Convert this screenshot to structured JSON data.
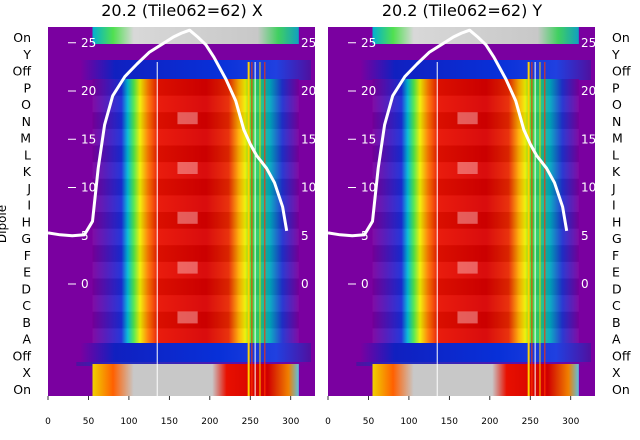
{
  "chart_data": [
    {
      "type": "heatmap",
      "title": "20.2 (Tile062=62) X",
      "xlabel": "",
      "ylabel": "Dipole",
      "xticks": [
        0,
        50,
        100,
        150,
        200,
        250,
        300
      ],
      "xlim": [
        0,
        330
      ],
      "overlay_ticks": [
        25,
        20,
        15,
        10,
        5,
        0
      ],
      "row_labels": [
        "On",
        "Y",
        "Off",
        "P",
        "O",
        "N",
        "M",
        "L",
        "K",
        "J",
        "I",
        "H",
        "G",
        "F",
        "E",
        "D",
        "C",
        "B",
        "A",
        "Off",
        "X",
        "On"
      ],
      "series": [
        {
          "x": [
            0,
            15,
            30,
            45,
            55,
            62,
            70,
            80,
            95,
            110,
            125,
            140,
            155,
            165,
            175,
            185,
            195,
            205,
            220,
            232,
            242,
            250,
            258,
            270,
            280,
            290,
            295
          ],
          "y": [
            5.3,
            5.1,
            5.0,
            5.1,
            6.5,
            12,
            16.5,
            19.5,
            21.5,
            22.8,
            24,
            24.8,
            25.6,
            26,
            26.3,
            25.6,
            24.8,
            23.5,
            21.2,
            19,
            16,
            14.5,
            13.3,
            12,
            10.5,
            8,
            5.5
          ]
        }
      ]
    },
    {
      "type": "heatmap",
      "title": "20.2 (Tile062=62) Y",
      "xlabel": "",
      "ylabel": "",
      "xticks": [
        0,
        50,
        100,
        150,
        200,
        250,
        300
      ],
      "xlim": [
        0,
        330
      ],
      "overlay_ticks": [
        25,
        20,
        15,
        10,
        5,
        0
      ],
      "row_labels": [
        "On",
        "Y",
        "Off",
        "P",
        "O",
        "N",
        "M",
        "L",
        "K",
        "J",
        "I",
        "H",
        "G",
        "F",
        "E",
        "D",
        "C",
        "B",
        "A",
        "Off",
        "X",
        "On"
      ],
      "series": [
        {
          "x": [
            0,
            15,
            30,
            45,
            55,
            62,
            70,
            80,
            95,
            110,
            125,
            140,
            155,
            165,
            175,
            185,
            195,
            205,
            220,
            232,
            242,
            250,
            258,
            270,
            280,
            290,
            295
          ],
          "y": [
            5.3,
            5.1,
            5.0,
            5.1,
            6.5,
            12,
            16.5,
            19.5,
            21.5,
            22.8,
            24,
            24.8,
            25.6,
            26,
            26.3,
            25.6,
            24.8,
            23.5,
            21.2,
            19,
            16,
            14.5,
            13.3,
            12,
            10.5,
            8,
            5.5
          ]
        }
      ]
    }
  ]
}
